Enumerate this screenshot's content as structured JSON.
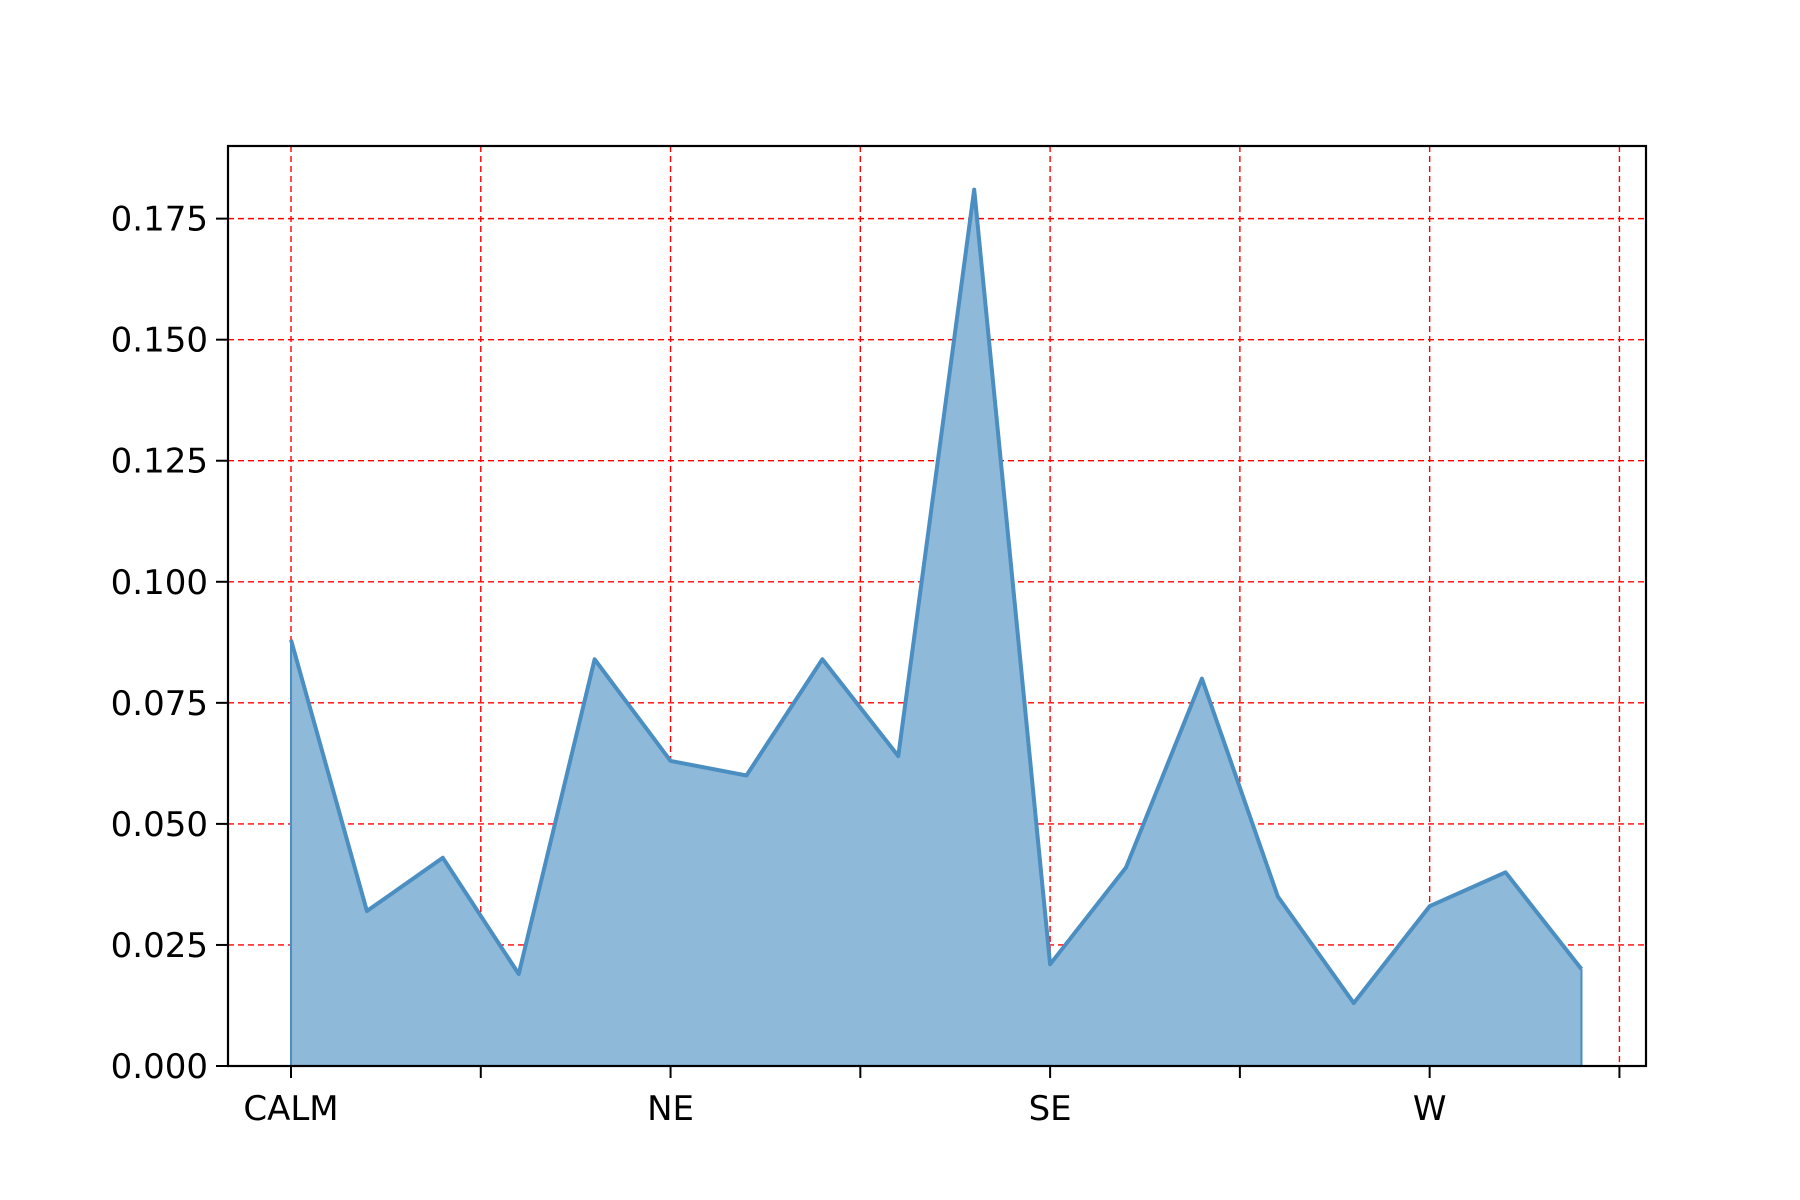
{
  "chart_data": {
    "type": "area",
    "title": "",
    "xlabel": "",
    "ylabel": "",
    "x_tick_labels": [
      {
        "index": 0,
        "label": "CALM"
      },
      {
        "index": 2.5,
        "label": ""
      },
      {
        "index": 5,
        "label": "NE"
      },
      {
        "index": 7.5,
        "label": ""
      },
      {
        "index": 10,
        "label": "SE"
      },
      {
        "index": 12.5,
        "label": ""
      },
      {
        "index": 15,
        "label": "W"
      },
      {
        "index": 17.5,
        "label": ""
      }
    ],
    "x": [
      0,
      1,
      2,
      3,
      4,
      5,
      6,
      7,
      8,
      9,
      10,
      11,
      12,
      13,
      14,
      15,
      16,
      17
    ],
    "values": [
      0.088,
      0.032,
      0.043,
      0.019,
      0.084,
      0.063,
      0.06,
      0.084,
      0.064,
      0.181,
      0.021,
      0.041,
      0.08,
      0.035,
      0.013,
      0.033,
      0.04,
      0.02
    ],
    "xlim": [
      -0.83,
      17.85
    ],
    "ylim": [
      0,
      0.19
    ],
    "y_ticks": [
      {
        "value": 0.0,
        "label": "0.000"
      },
      {
        "value": 0.025,
        "label": "0.025"
      },
      {
        "value": 0.05,
        "label": "0.050"
      },
      {
        "value": 0.075,
        "label": "0.075"
      },
      {
        "value": 0.1,
        "label": "0.100"
      },
      {
        "value": 0.125,
        "label": "0.125"
      },
      {
        "value": 0.15,
        "label": "0.150"
      },
      {
        "value": 0.175,
        "label": "0.175"
      }
    ],
    "grid": true,
    "grid_color": "#ff0000",
    "line_color": "#4a8ec2",
    "fill_color": "#8fb9d9",
    "legend": "none"
  }
}
